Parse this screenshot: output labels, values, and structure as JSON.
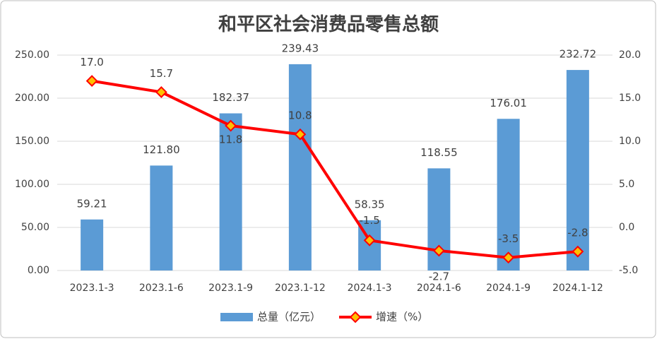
{
  "chart_data": {
    "type": "bar-line",
    "title": "和平区社会消费品零售总额",
    "categories": [
      "2023.1-3",
      "2023.1-6",
      "2023.1-9",
      "2023.1-12",
      "2024.1-3",
      "2024.1-6",
      "2024.1-9",
      "2024.1-12"
    ],
    "series": [
      {
        "name": "总量（亿元）",
        "type": "bar",
        "color": "#5b9bd5",
        "values": [
          59.21,
          121.8,
          182.37,
          239.43,
          58.35,
          118.55,
          176.01,
          232.72
        ],
        "value_labels": [
          "59.21",
          "121.80",
          "182.37",
          "239.43",
          "58.35",
          "118.55",
          "176.01",
          "232.72"
        ]
      },
      {
        "name": "增速（%）",
        "type": "line",
        "color": "#ff0000",
        "axis": "y2",
        "values": [
          17,
          15.7,
          11.8,
          10.8,
          -1.5,
          -2.7,
          -3.5,
          -2.8
        ],
        "value_labels": [
          "17.0",
          "15.7",
          "11.8",
          "10.8",
          "-1.5",
          "-2.7",
          "-3.5",
          "-2.8"
        ]
      }
    ],
    "ylim": [
      0,
      250
    ],
    "yticks": [
      {
        "value": 0,
        "label": "0.00"
      },
      {
        "value": 50,
        "label": "50.00"
      },
      {
        "value": 100,
        "label": "100.00"
      },
      {
        "value": 150,
        "label": "150.00"
      },
      {
        "value": 200,
        "label": "200.00"
      },
      {
        "value": 250,
        "label": "250.00"
      }
    ],
    "y2lim": [
      -5,
      20
    ],
    "y2ticks": [
      {
        "value": -5,
        "label": "-5.0"
      },
      {
        "value": 0,
        "label": "0.0"
      },
      {
        "value": 5,
        "label": "5.0"
      },
      {
        "value": 10,
        "label": "10.0"
      },
      {
        "value": 15,
        "label": "15.0"
      },
      {
        "value": 20,
        "label": "20.0"
      }
    ],
    "grid": true,
    "legend": "bottom"
  }
}
